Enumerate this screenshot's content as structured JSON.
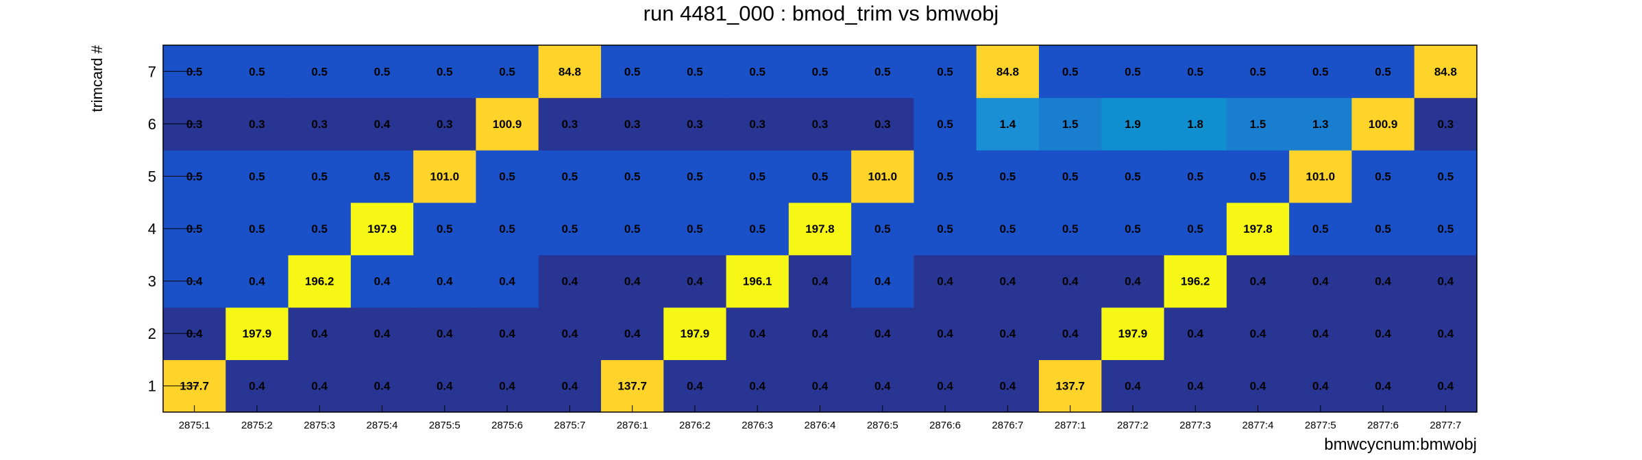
{
  "chart_data": {
    "type": "heatmap",
    "title": "run 4481_000 : bmod_trim vs bmwobj",
    "xlabel": "bmwcycnum:bmwobj",
    "ylabel": "trimcard #",
    "x_categories": [
      "2875:1",
      "2875:2",
      "2875:3",
      "2875:4",
      "2875:5",
      "2875:6",
      "2875:7",
      "2876:1",
      "2876:2",
      "2876:3",
      "2876:4",
      "2876:5",
      "2876:6",
      "2876:7",
      "2877:1",
      "2877:2",
      "2877:3",
      "2877:4",
      "2877:5",
      "2877:6",
      "2877:7"
    ],
    "y_categories": [
      "1",
      "2",
      "3",
      "4",
      "5",
      "6",
      "7"
    ],
    "values": [
      [
        137.7,
        0.4,
        0.4,
        0.4,
        0.4,
        0.4,
        0.4,
        137.7,
        0.4,
        0.4,
        0.4,
        0.4,
        0.4,
        0.4,
        137.7,
        0.4,
        0.4,
        0.4,
        0.4,
        0.4,
        0.4
      ],
      [
        0.4,
        197.9,
        0.4,
        0.4,
        0.4,
        0.4,
        0.4,
        0.4,
        197.9,
        0.4,
        0.4,
        0.4,
        0.4,
        0.4,
        0.4,
        197.9,
        0.4,
        0.4,
        0.4,
        0.4,
        0.4
      ],
      [
        0.4,
        0.4,
        196.2,
        0.4,
        0.4,
        0.4,
        0.4,
        0.4,
        0.4,
        196.1,
        0.4,
        0.4,
        0.4,
        0.4,
        0.4,
        0.4,
        196.2,
        0.4,
        0.4,
        0.4,
        0.4
      ],
      [
        0.5,
        0.5,
        0.5,
        197.9,
        0.5,
        0.5,
        0.5,
        0.5,
        0.5,
        0.5,
        197.8,
        0.5,
        0.5,
        0.5,
        0.5,
        0.5,
        0.5,
        197.8,
        0.5,
        0.5,
        0.5
      ],
      [
        0.5,
        0.5,
        0.5,
        0.5,
        101.0,
        0.5,
        0.5,
        0.5,
        0.5,
        0.5,
        0.5,
        101.0,
        0.5,
        0.5,
        0.5,
        0.5,
        0.5,
        0.5,
        101.0,
        0.5,
        0.5
      ],
      [
        0.3,
        0.3,
        0.3,
        0.4,
        0.3,
        100.9,
        0.3,
        0.3,
        0.3,
        0.3,
        0.3,
        0.3,
        0.5,
        1.4,
        1.5,
        1.9,
        1.8,
        1.5,
        1.3,
        100.9,
        0.3
      ],
      [
        0.5,
        0.5,
        0.5,
        0.5,
        0.5,
        0.5,
        84.8,
        0.5,
        0.5,
        0.5,
        0.5,
        0.5,
        0.5,
        84.8,
        0.5,
        0.5,
        0.5,
        0.5,
        0.5,
        0.5,
        84.8
      ]
    ],
    "cell_colors": [
      [
        "#ffd42a",
        "#283593",
        "#283593",
        "#283593",
        "#283593",
        "#283593",
        "#283593",
        "#ffd42a",
        "#283593",
        "#283593",
        "#283593",
        "#283593",
        "#283593",
        "#283593",
        "#ffd42a",
        "#283593",
        "#283593",
        "#283593",
        "#283593",
        "#283593",
        "#283593"
      ],
      [
        "#283593",
        "#f7f715",
        "#283593",
        "#283593",
        "#283593",
        "#283593",
        "#283593",
        "#283593",
        "#f7f715",
        "#283593",
        "#283593",
        "#283593",
        "#283593",
        "#283593",
        "#283593",
        "#f7f715",
        "#283593",
        "#283593",
        "#283593",
        "#283593",
        "#283593"
      ],
      [
        "#1a50c8",
        "#1a50c8",
        "#f7f715",
        "#1a50c8",
        "#1a50c8",
        "#1a50c8",
        "#283593",
        "#283593",
        "#283593",
        "#f7f715",
        "#283593",
        "#1a50c8",
        "#283593",
        "#283593",
        "#283593",
        "#283593",
        "#f7f715",
        "#283593",
        "#283593",
        "#283593",
        "#283593"
      ],
      [
        "#1a50c8",
        "#1a50c8",
        "#1a50c8",
        "#f7f715",
        "#1a50c8",
        "#1a50c8",
        "#1a50c8",
        "#1a50c8",
        "#1a50c8",
        "#1a50c8",
        "#f7f715",
        "#1a50c8",
        "#1a50c8",
        "#1a50c8",
        "#1a50c8",
        "#1a50c8",
        "#1a50c8",
        "#f7f715",
        "#1a50c8",
        "#1a50c8",
        "#1a50c8"
      ],
      [
        "#1a50c8",
        "#1a50c8",
        "#1a50c8",
        "#1a50c8",
        "#ffd42a",
        "#1a50c8",
        "#1a50c8",
        "#1a50c8",
        "#1a50c8",
        "#1a50c8",
        "#1a50c8",
        "#ffd42a",
        "#1a50c8",
        "#1a50c8",
        "#1a50c8",
        "#1a50c8",
        "#1a50c8",
        "#1a50c8",
        "#ffd42a",
        "#1a50c8",
        "#1a50c8"
      ],
      [
        "#283593",
        "#283593",
        "#283593",
        "#283593",
        "#283593",
        "#ffd42a",
        "#283593",
        "#283593",
        "#283593",
        "#283593",
        "#283593",
        "#283593",
        "#1a50c8",
        "#1a8fd6",
        "#1a7ed0",
        "#108fd0",
        "#108fd0",
        "#1a7ed0",
        "#1a7ed0",
        "#ffd42a",
        "#283593"
      ],
      [
        "#1a50c8",
        "#1a50c8",
        "#1a50c8",
        "#1a50c8",
        "#1a50c8",
        "#1a50c8",
        "#ffd42a",
        "#1a50c8",
        "#1a50c8",
        "#1a50c8",
        "#1a50c8",
        "#1a50c8",
        "#1a50c8",
        "#ffd42a",
        "#1a50c8",
        "#1a50c8",
        "#1a50c8",
        "#1a50c8",
        "#1a50c8",
        "#1a50c8",
        "#ffd42a"
      ]
    ]
  }
}
